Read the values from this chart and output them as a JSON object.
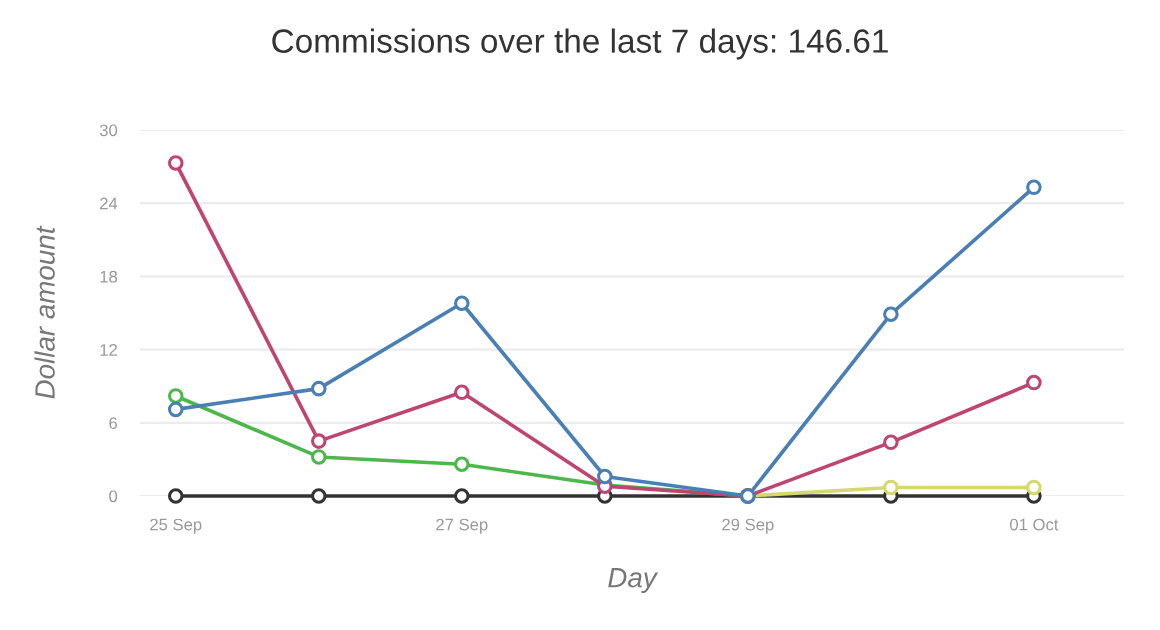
{
  "chart_data": {
    "type": "line",
    "title": "Commissions over the last 7 days: 146.61",
    "xlabel": "Day",
    "ylabel": "Dollar amount",
    "categories": [
      "25 Sep",
      null,
      "27 Sep",
      null,
      "29 Sep",
      null,
      "01 Oct"
    ],
    "series": [
      {
        "color": "#4a7fb5",
        "values": [
          7.1,
          8.8,
          15.8,
          1.6,
          0,
          14.9,
          25.3
        ]
      },
      {
        "color": "#c0456e",
        "values": [
          27.3,
          4.5,
          8.5,
          0.8,
          0,
          4.4,
          9.3
        ]
      },
      {
        "color": "#4cb84c",
        "values": [
          8.2,
          3.2,
          2.6,
          0.9,
          0,
          null,
          null
        ]
      },
      {
        "color": "#d4d96a",
        "values": [
          null,
          null,
          null,
          null,
          0,
          0.7,
          0.7
        ]
      },
      {
        "color": "#333333",
        "values": [
          0,
          0,
          0,
          0,
          0,
          0,
          0
        ]
      }
    ],
    "ylim": [
      0,
      30
    ],
    "yticks": [
      0,
      6,
      12,
      18,
      24,
      30
    ],
    "grid": "y",
    "marker": "circle",
    "line_style": "solid"
  }
}
